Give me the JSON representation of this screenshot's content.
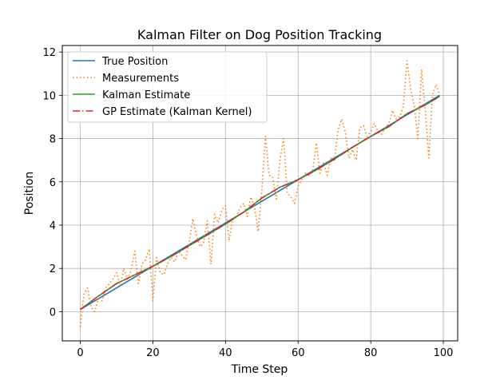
{
  "chart_data": {
    "type": "line",
    "title": "Kalman Filter on Dog Position Tracking",
    "xlabel": "Time Step",
    "ylabel": "Position",
    "xlim": [
      -4.95,
      103.95
    ],
    "ylim": [
      -1.35,
      12.3
    ],
    "xticks": [
      0,
      20,
      40,
      60,
      80,
      100
    ],
    "yticks": [
      0,
      2,
      4,
      6,
      8,
      10,
      12
    ],
    "grid": true,
    "legend_position": "upper-left",
    "series": [
      {
        "name": "True Position",
        "color": "#1f77b4",
        "style": "solid",
        "x": [
          0,
          99
        ],
        "y": [
          0.1,
          10.0
        ]
      },
      {
        "name": "Measurements",
        "color": "#ff7f0e",
        "style": "dotted",
        "x": [
          0,
          1,
          2,
          3,
          4,
          5,
          6,
          7,
          8,
          9,
          10,
          11,
          12,
          13,
          14,
          15,
          16,
          17,
          18,
          19,
          20,
          21,
          22,
          23,
          24,
          25,
          26,
          27,
          28,
          29,
          30,
          31,
          32,
          33,
          34,
          35,
          36,
          37,
          38,
          39,
          40,
          41,
          42,
          43,
          44,
          45,
          46,
          47,
          48,
          49,
          50,
          51,
          52,
          53,
          54,
          55,
          56,
          57,
          58,
          59,
          60,
          61,
          62,
          63,
          64,
          65,
          66,
          67,
          68,
          69,
          70,
          71,
          72,
          73,
          74,
          75,
          76,
          77,
          78,
          79,
          80,
          81,
          82,
          83,
          84,
          85,
          86,
          87,
          88,
          89,
          90,
          91,
          92,
          93,
          94,
          95,
          96,
          97,
          98,
          99
        ],
        "y": [
          -0.7,
          0.8,
          1.1,
          0.2,
          0.0,
          0.6,
          0.5,
          1.1,
          1.3,
          1.5,
          1.8,
          1.2,
          2.0,
          1.5,
          1.9,
          2.8,
          1.3,
          2.2,
          2.4,
          2.9,
          0.5,
          2.5,
          1.8,
          1.7,
          2.2,
          2.5,
          2.3,
          2.8,
          2.6,
          2.4,
          3.2,
          4.3,
          3.5,
          3.0,
          3.2,
          4.2,
          2.2,
          4.5,
          4.1,
          4.7,
          4.9,
          3.3,
          4.3,
          4.4,
          4.8,
          5.0,
          4.4,
          5.3,
          4.8,
          3.7,
          5.6,
          8.1,
          6.3,
          6.2,
          5.2,
          7.0,
          8.0,
          5.5,
          5.3,
          5.0,
          5.8,
          6.1,
          6.4,
          6.3,
          6.5,
          7.8,
          6.4,
          6.9,
          6.3,
          7.1,
          7.0,
          8.4,
          8.9,
          8.3,
          7.1,
          7.5,
          7.0,
          8.5,
          8.6,
          8.1,
          8.3,
          8.7,
          8.3,
          8.2,
          8.5,
          8.7,
          9.3,
          8.9,
          9.0,
          9.5,
          11.6,
          10.3,
          9.5,
          8.0,
          11.2,
          9.4,
          7.1,
          10.0,
          10.5,
          10.0
        ]
      },
      {
        "name": "Kalman Estimate",
        "color": "#2ca02c",
        "style": "solid",
        "x": [
          0,
          5,
          10,
          15,
          20,
          25,
          30,
          35,
          40,
          45,
          50,
          55,
          60,
          65,
          70,
          75,
          80,
          85,
          90,
          95,
          99
        ],
        "y": [
          0.1,
          0.72,
          1.3,
          1.7,
          2.1,
          2.55,
          3.05,
          3.55,
          4.05,
          4.6,
          5.25,
          5.75,
          6.1,
          6.55,
          7.05,
          7.6,
          8.1,
          8.55,
          9.15,
          9.55,
          9.95
        ]
      },
      {
        "name": "GP Estimate (Kalman Kernel)",
        "color": "#d62728",
        "style": "dashdot",
        "x": [
          0,
          5,
          10,
          15,
          20,
          25,
          30,
          35,
          40,
          45,
          50,
          55,
          60,
          65,
          70,
          75,
          80,
          85,
          90,
          95,
          99
        ],
        "y": [
          0.1,
          0.72,
          1.3,
          1.7,
          2.1,
          2.55,
          3.05,
          3.55,
          4.05,
          4.6,
          5.25,
          5.75,
          6.1,
          6.55,
          7.05,
          7.6,
          8.1,
          8.55,
          9.15,
          9.55,
          9.95
        ]
      }
    ]
  }
}
